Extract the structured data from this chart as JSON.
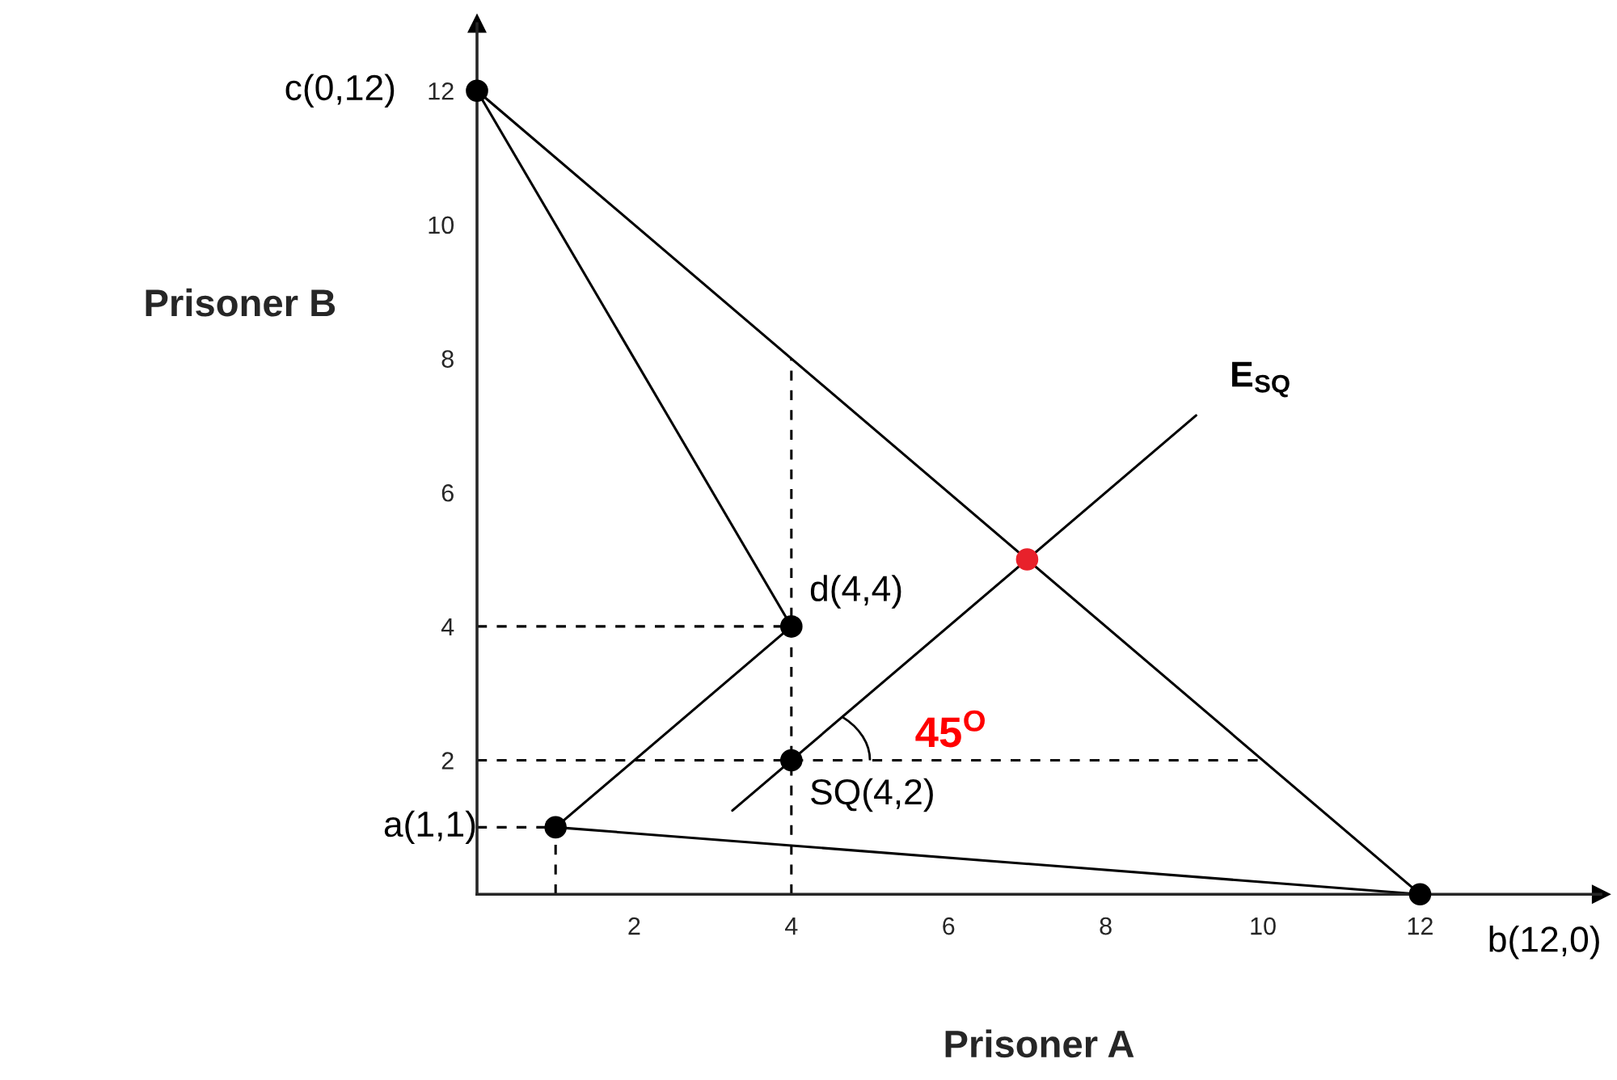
{
  "chart_data": {
    "type": "line",
    "xlabel": "Prisoner A",
    "ylabel": "Prisoner B",
    "xlim": [
      0,
      14.3
    ],
    "ylim": [
      0,
      13
    ],
    "xticks": [
      2,
      4,
      6,
      8,
      10,
      12
    ],
    "yticks": [
      2,
      4,
      6,
      8,
      10,
      12
    ],
    "grid": false,
    "legend": false,
    "series": [
      {
        "type": "line",
        "color": "#000000",
        "line_style": "solid",
        "x": [
          0,
          12
        ],
        "values": [
          12,
          0
        ]
      },
      {
        "type": "line",
        "color": "#000000",
        "line_style": "solid",
        "x": [
          0,
          4
        ],
        "values": [
          12,
          4
        ]
      },
      {
        "type": "line",
        "color": "#000000",
        "line_style": "solid",
        "x": [
          1,
          4
        ],
        "values": [
          1,
          4
        ]
      },
      {
        "type": "line",
        "color": "#000000",
        "line_style": "solid",
        "x": [
          1,
          12
        ],
        "values": [
          1,
          0
        ]
      },
      {
        "type": "line",
        "color": "#000000",
        "line_style": "solid",
        "x": [
          3.25,
          9.15
        ],
        "values": [
          1.25,
          7.15
        ]
      },
      {
        "type": "line",
        "color": "#000000",
        "line_style": "dashed",
        "x": [
          4,
          4
        ],
        "values": [
          0,
          8
        ]
      },
      {
        "type": "line",
        "color": "#000000",
        "line_style": "dashed",
        "x": [
          0,
          4
        ],
        "values": [
          4,
          4
        ]
      },
      {
        "type": "line",
        "color": "#000000",
        "line_style": "dashed",
        "x": [
          0,
          10
        ],
        "values": [
          2,
          2
        ]
      },
      {
        "type": "line",
        "color": "#000000",
        "line_style": "dashed",
        "x": [
          1,
          1
        ],
        "values": [
          0,
          1
        ]
      },
      {
        "type": "line",
        "color": "#000000",
        "line_style": "dashed",
        "x": [
          0,
          1
        ],
        "values": [
          1,
          1
        ]
      },
      {
        "type": "scatter",
        "color": "#000000",
        "marker": "circle",
        "x": [
          0,
          12,
          1,
          4,
          4
        ],
        "values": [
          12,
          0,
          1,
          4,
          2
        ]
      },
      {
        "type": "scatter",
        "color": "#e8212b",
        "marker": "circle",
        "x": [
          7
        ],
        "values": [
          5
        ]
      }
    ],
    "annotations": [
      {
        "text": "c(0,12)",
        "x": 0,
        "y": 12
      },
      {
        "text": "d(4,4)",
        "x": 4,
        "y": 4
      },
      {
        "text": "a(1,1)",
        "x": 1,
        "y": 1
      },
      {
        "text": "SQ(4,2)",
        "x": 4,
        "y": 2
      },
      {
        "text": "b(12,0)",
        "x": 12,
        "y": 0
      },
      {
        "text": "E$_{SQ}$",
        "x": 9.15,
        "y": 7.15
      },
      {
        "text": "45$^{O}$",
        "x": 4,
        "y": 2
      }
    ]
  }
}
